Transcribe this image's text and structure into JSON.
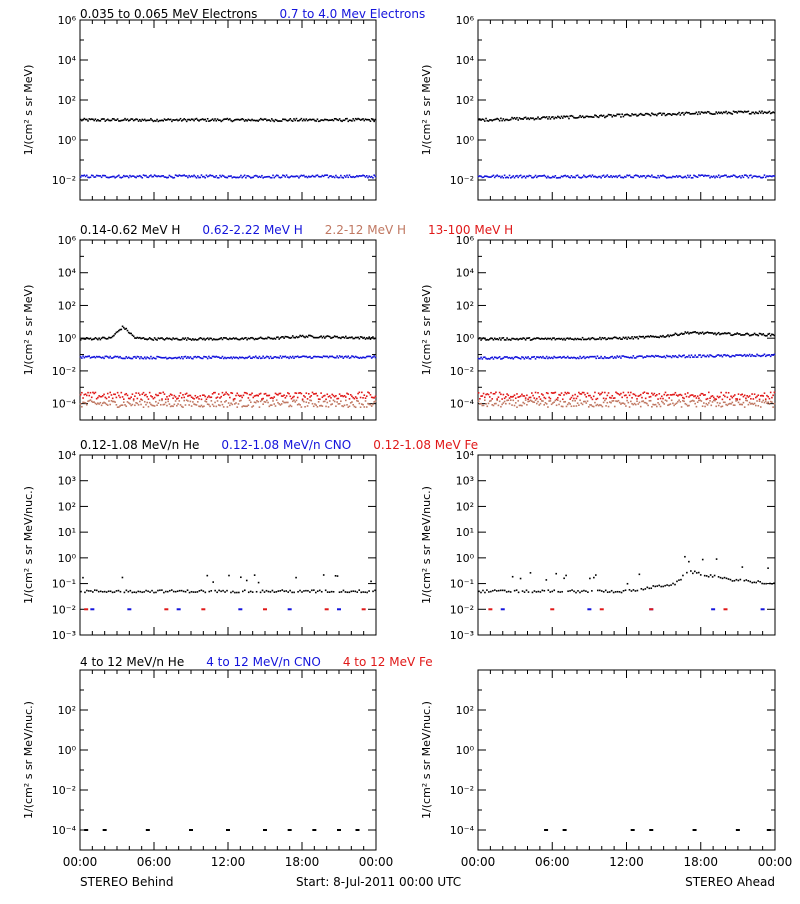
{
  "colors": {
    "black": "#000000",
    "blue": "#1414dc",
    "salmon": "#c07862",
    "red": "#e01818"
  },
  "rows": [
    {
      "ylabel": "1/(cm² s sr MeV)",
      "ymin_exp": -3,
      "ymax_exp": 6,
      "ticks": [
        {
          "exp": -2,
          "label": "10⁻²"
        },
        {
          "exp": 0,
          "label": "10⁰"
        },
        {
          "exp": 2,
          "label": "10²"
        },
        {
          "exp": 4,
          "label": "10⁴"
        },
        {
          "exp": 6,
          "label": "10⁶"
        }
      ],
      "legend": [
        {
          "text": "0.035 to 0.065 MeV Electrons",
          "color": "black"
        },
        {
          "text": "0.7 to 4.0 Mev Electrons",
          "color": "blue"
        }
      ]
    },
    {
      "ylabel": "1/(cm² s sr MeV)",
      "ymin_exp": -5,
      "ymax_exp": 6,
      "ticks": [
        {
          "exp": -4,
          "label": "10⁻⁴"
        },
        {
          "exp": -2,
          "label": "10⁻²"
        },
        {
          "exp": 0,
          "label": "10⁰"
        },
        {
          "exp": 2,
          "label": "10²"
        },
        {
          "exp": 4,
          "label": "10⁴"
        },
        {
          "exp": 6,
          "label": "10⁶"
        }
      ],
      "legend": [
        {
          "text": "0.14-0.62 MeV H",
          "color": "black"
        },
        {
          "text": "0.62-2.22 MeV H",
          "color": "blue"
        },
        {
          "text": "2.2-12 MeV H",
          "color": "salmon"
        },
        {
          "text": "13-100 MeV H",
          "color": "red"
        }
      ]
    },
    {
      "ylabel": "1/(cm² s sr MeV/nuc.)",
      "ymin_exp": -3,
      "ymax_exp": 4,
      "ticks": [
        {
          "exp": -3,
          "label": "10⁻³"
        },
        {
          "exp": -2,
          "label": "10⁻²"
        },
        {
          "exp": -1,
          "label": "10⁻¹"
        },
        {
          "exp": 0,
          "label": "10⁰"
        },
        {
          "exp": 1,
          "label": "10¹"
        },
        {
          "exp": 2,
          "label": "10²"
        },
        {
          "exp": 3,
          "label": "10³"
        },
        {
          "exp": 4,
          "label": "10⁴"
        }
      ],
      "legend": [
        {
          "text": "0.12-1.08 MeV/n He",
          "color": "black"
        },
        {
          "text": "0.12-1.08 MeV/n CNO",
          "color": "blue"
        },
        {
          "text": "0.12-1.08 MeV Fe",
          "color": "red"
        }
      ]
    },
    {
      "ylabel": "1/(cm² s sr MeV/nuc.)",
      "ymin_exp": -5,
      "ymax_exp": 4,
      "ticks": [
        {
          "exp": -4,
          "label": "10⁻⁴"
        },
        {
          "exp": -2,
          "label": "10⁻²"
        },
        {
          "exp": 0,
          "label": "10⁰"
        },
        {
          "exp": 2,
          "label": "10²"
        }
      ],
      "legend": [
        {
          "text": "4 to 12 MeV/n He",
          "color": "black"
        },
        {
          "text": "4 to 12 MeV/n CNO",
          "color": "blue"
        },
        {
          "text": "4 to 12 MeV Fe",
          "color": "red"
        }
      ]
    }
  ],
  "xticks": [
    "00:00",
    "06:00",
    "12:00",
    "18:00",
    "00:00"
  ],
  "footer": {
    "left": "STEREO Behind",
    "center": "Start:  8-Jul-2011 00:00 UTC",
    "right": "STEREO Ahead"
  },
  "chart_data": {
    "type": "scatter",
    "x_unit": "hours since start",
    "x_range": [
      0,
      24
    ],
    "y_scale": "log",
    "panels": [
      {
        "spacecraft": "STEREO Behind",
        "row": 0,
        "series": [
          {
            "name": "0.035 to 0.065 MeV Electrons",
            "color": "black",
            "x": [
              0,
              6,
              12,
              18,
              24
            ],
            "y": [
              10,
              10,
              10,
              10,
              10
            ]
          },
          {
            "name": "0.7 to 4.0 Mev Electrons",
            "color": "blue",
            "x": [
              0,
              6,
              12,
              18,
              24
            ],
            "y": [
              0.015,
              0.015,
              0.015,
              0.015,
              0.015
            ]
          }
        ]
      },
      {
        "spacecraft": "STEREO Ahead",
        "row": 0,
        "series": [
          {
            "name": "0.035 to 0.065 MeV Electrons",
            "color": "black",
            "x": [
              0,
              6,
              12,
              18,
              24
            ],
            "y": [
              10,
              13,
              17,
              22,
              25
            ]
          },
          {
            "name": "0.7 to 4.0 Mev Electrons",
            "color": "blue",
            "x": [
              0,
              6,
              12,
              18,
              24
            ],
            "y": [
              0.015,
              0.015,
              0.015,
              0.015,
              0.015
            ]
          }
        ]
      },
      {
        "spacecraft": "STEREO Behind",
        "row": 1,
        "series": [
          {
            "name": "0.14-0.62 MeV H",
            "color": "black",
            "x": [
              0,
              2.5,
              3.5,
              4.5,
              6,
              12,
              16,
              18,
              24
            ],
            "y": [
              0.9,
              1.0,
              5,
              1.0,
              0.9,
              0.9,
              1.0,
              1.3,
              1.0
            ]
          },
          {
            "name": "0.62-2.22 MeV H",
            "color": "blue",
            "x": [
              0,
              6,
              12,
              18,
              24
            ],
            "y": [
              0.07,
              0.065,
              0.065,
              0.07,
              0.07
            ]
          },
          {
            "name": "2.2-12 MeV H",
            "color": "salmon",
            "x": [
              0,
              6,
              12,
              18,
              24
            ],
            "y": [
              0.0001,
              0.0001,
              0.0001,
              0.0001,
              0.0001
            ]
          },
          {
            "name": "13-100 MeV H",
            "color": "red",
            "x": [
              0,
              6,
              12,
              18,
              24
            ],
            "y": [
              0.0003,
              0.0003,
              0.0003,
              0.0003,
              0.0003
            ]
          }
        ]
      },
      {
        "spacecraft": "STEREO Ahead",
        "row": 1,
        "series": [
          {
            "name": "0.14-0.62 MeV H",
            "color": "black",
            "x": [
              0,
              6,
              12,
              15,
              17,
              20,
              24
            ],
            "y": [
              0.9,
              0.9,
              1.0,
              1.3,
              2.2,
              1.8,
              1.6
            ]
          },
          {
            "name": "0.62-2.22 MeV H",
            "color": "blue",
            "x": [
              0,
              6,
              12,
              18,
              24
            ],
            "y": [
              0.06,
              0.065,
              0.07,
              0.08,
              0.09
            ]
          },
          {
            "name": "2.2-12 MeV H",
            "color": "salmon",
            "x": [
              0,
              6,
              12,
              18,
              24
            ],
            "y": [
              0.0001,
              0.0001,
              0.0001,
              0.0001,
              0.0001
            ]
          },
          {
            "name": "13-100 MeV H",
            "color": "red",
            "x": [
              0,
              6,
              12,
              18,
              24
            ],
            "y": [
              0.0003,
              0.0003,
              0.0003,
              0.0003,
              0.0003
            ]
          }
        ]
      },
      {
        "spacecraft": "STEREO Behind",
        "row": 2,
        "series": [
          {
            "name": "0.12-1.08 MeV/n He",
            "color": "black",
            "x": [
              0,
              6,
              12,
              18,
              24
            ],
            "y": [
              0.05,
              0.05,
              0.05,
              0.05,
              0.05
            ]
          },
          {
            "name": "0.12-1.08 MeV/n CNO",
            "color": "blue",
            "x": [
              1,
              4,
              8,
              13,
              17,
              21
            ],
            "y": [
              0.01,
              0.01,
              0.01,
              0.01,
              0.01,
              0.01
            ]
          },
          {
            "name": "0.12-1.08 MeV Fe",
            "color": "red",
            "x": [
              0.5,
              7,
              10,
              15,
              20,
              23
            ],
            "y": [
              0.01,
              0.01,
              0.01,
              0.01,
              0.01,
              0.01
            ]
          }
        ]
      },
      {
        "spacecraft": "STEREO Ahead",
        "row": 2,
        "series": [
          {
            "name": "0.12-1.08 MeV/n He",
            "color": "black",
            "x": [
              0,
              6,
              12,
              16,
              17,
              20,
              24
            ],
            "y": [
              0.05,
              0.05,
              0.05,
              0.1,
              0.3,
              0.15,
              0.1
            ]
          },
          {
            "name": "0.12-1.08 MeV/n CNO",
            "color": "blue",
            "x": [
              2,
              9,
              14,
              19,
              23
            ],
            "y": [
              0.01,
              0.01,
              0.01,
              0.01,
              0.01
            ]
          },
          {
            "name": "0.12-1.08 MeV Fe",
            "color": "red",
            "x": [
              1,
              6,
              10,
              14,
              20
            ],
            "y": [
              0.01,
              0.01,
              0.01,
              0.01,
              0.01
            ]
          }
        ]
      },
      {
        "spacecraft": "STEREO Behind",
        "row": 3,
        "series": [
          {
            "name": "4 to 12 MeV/n He",
            "color": "black",
            "x": [
              0.5,
              2,
              5.5,
              9,
              12,
              15,
              17,
              19,
              21,
              22.5
            ],
            "y": [
              0.0001,
              0.0001,
              0.0001,
              0.0001,
              0.0001,
              0.0001,
              0.0001,
              0.0001,
              0.0001,
              0.0001
            ]
          }
        ]
      },
      {
        "spacecraft": "STEREO Ahead",
        "row": 3,
        "series": [
          {
            "name": "4 to 12 MeV/n He",
            "color": "black",
            "x": [
              5.5,
              7,
              12.5,
              14,
              17.5,
              21,
              23.5
            ],
            "y": [
              0.0001,
              0.0001,
              0.0001,
              0.0001,
              0.0001,
              0.0001,
              0.0001
            ]
          }
        ]
      }
    ]
  }
}
